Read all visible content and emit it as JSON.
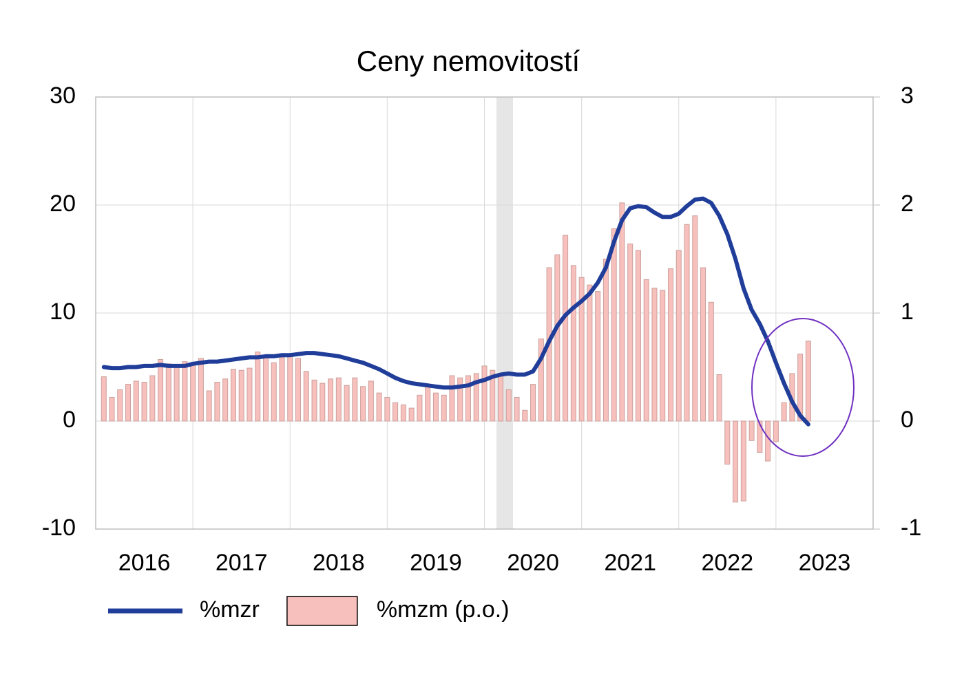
{
  "chart_data": {
    "type": "combo",
    "title": "Ceny nemovitostí",
    "x_labels": [
      "2016",
      "2017",
      "2018",
      "2019",
      "2020",
      "2021",
      "2022",
      "2023"
    ],
    "ylim": [
      -10,
      30
    ],
    "yticks": [
      -10,
      0,
      10,
      20,
      30
    ],
    "y2lim": [
      -1,
      3
    ],
    "y2ticks": [
      -1,
      0,
      1,
      2,
      3
    ],
    "grid": true,
    "legend": "bottom",
    "series": [
      {
        "name": "%mzr",
        "type": "line",
        "color": "#1f3d99",
        "axis": "y",
        "values": [
          5.0,
          4.9,
          4.9,
          5.0,
          5.0,
          5.1,
          5.1,
          5.2,
          5.1,
          5.1,
          5.1,
          5.3,
          5.4,
          5.5,
          5.5,
          5.6,
          5.7,
          5.8,
          5.9,
          5.9,
          6.0,
          6.0,
          6.1,
          6.1,
          6.2,
          6.3,
          6.3,
          6.2,
          6.1,
          6.0,
          5.8,
          5.6,
          5.4,
          5.1,
          4.8,
          4.4,
          4.0,
          3.7,
          3.5,
          3.4,
          3.3,
          3.2,
          3.1,
          3.1,
          3.2,
          3.3,
          3.6,
          3.8,
          4.1,
          4.3,
          4.4,
          4.3,
          4.3,
          4.6,
          5.8,
          7.4,
          8.8,
          9.8,
          10.5,
          11.1,
          11.8,
          12.8,
          14.2,
          16.6,
          18.6,
          19.7,
          19.9,
          19.8,
          19.3,
          18.9,
          18.9,
          19.2,
          19.9,
          20.5,
          20.6,
          20.2,
          19.0,
          17.3,
          15.0,
          12.3,
          10.3,
          9.0,
          7.4,
          5.4,
          3.5,
          1.8,
          0.5,
          -0.3
        ]
      },
      {
        "name": "%mzm (p.o.)",
        "type": "bar",
        "color": "#f8c0bc",
        "axis": "y2",
        "values": [
          0.41,
          0.22,
          0.29,
          0.34,
          0.37,
          0.36,
          0.42,
          0.57,
          0.53,
          0.51,
          0.55,
          0.54,
          0.58,
          0.28,
          0.36,
          0.39,
          0.48,
          0.47,
          0.49,
          0.64,
          0.6,
          0.54,
          0.59,
          0.62,
          0.58,
          0.46,
          0.38,
          0.35,
          0.39,
          0.4,
          0.33,
          0.4,
          0.32,
          0.37,
          0.26,
          0.22,
          0.17,
          0.15,
          0.12,
          0.24,
          0.32,
          0.26,
          0.24,
          0.42,
          0.4,
          0.42,
          0.44,
          0.51,
          0.47,
          0.42,
          0.29,
          0.22,
          0.1,
          0.34,
          0.76,
          1.42,
          1.54,
          1.72,
          1.44,
          1.33,
          1.26,
          1.2,
          1.5,
          1.78,
          2.02,
          1.64,
          1.58,
          1.31,
          1.23,
          1.21,
          1.41,
          1.58,
          1.82,
          1.9,
          1.42,
          1.1,
          0.43,
          -0.4,
          -0.75,
          -0.74,
          -0.18,
          -0.29,
          -0.37,
          -0.19,
          0.17,
          0.44,
          0.62,
          0.74
        ]
      }
    ]
  }
}
